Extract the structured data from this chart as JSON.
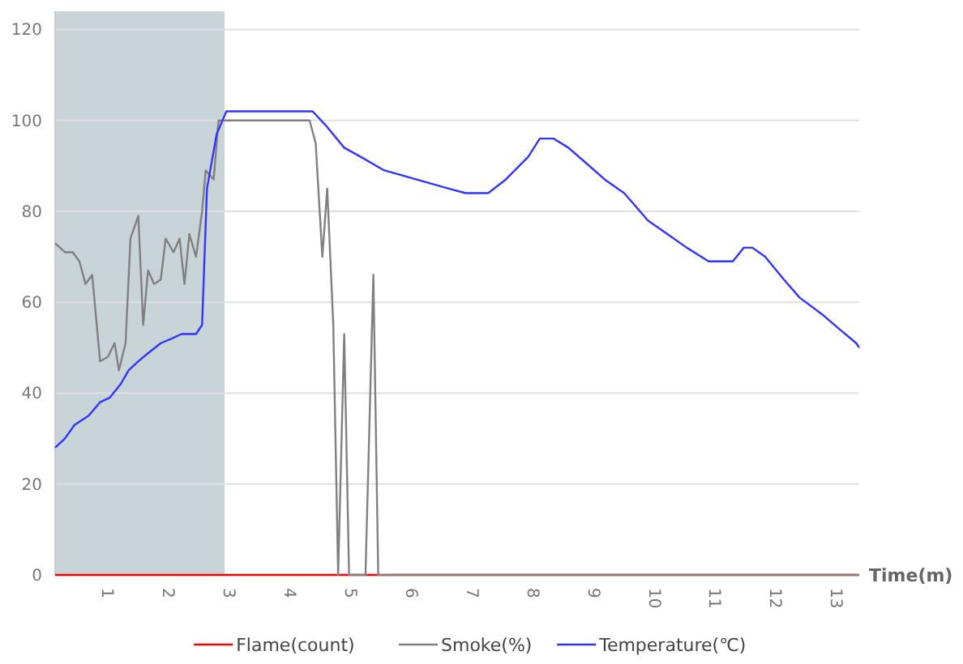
{
  "chart_data": {
    "type": "line",
    "xlabel": "Time(m)",
    "xlim": [
      0.13,
      13.37
    ],
    "xticks": [
      1,
      2,
      3,
      4,
      5,
      6,
      7,
      8,
      9,
      10,
      11,
      12,
      13
    ],
    "ylim": [
      0,
      124
    ],
    "yticks": [
      0,
      20,
      40,
      60,
      80,
      100,
      120
    ],
    "grid": "y",
    "legend": "bottom",
    "marker": "none",
    "line_style": "solid",
    "bands": [
      {
        "axis": "x",
        "from": 0.13,
        "to": 2.92,
        "color": "#c8d4d8"
      }
    ],
    "series": [
      {
        "name": "Flame(count)",
        "color": "#ff0000",
        "x": [
          0.13,
          13.37
        ],
        "values": [
          0,
          0
        ]
      },
      {
        "name": "Smoke(%)",
        "color": "#808080",
        "x": [
          0.13,
          0.29,
          0.42,
          0.53,
          0.63,
          0.74,
          0.87,
          1.0,
          1.11,
          1.18,
          1.29,
          1.37,
          1.5,
          1.58,
          1.66,
          1.76,
          1.87,
          1.95,
          2.08,
          2.18,
          2.26,
          2.34,
          2.45,
          2.55,
          2.61,
          2.74,
          2.82,
          4.32,
          4.42,
          4.53,
          4.61,
          4.71,
          4.79,
          4.89,
          4.97,
          5.24,
          5.37,
          5.45,
          13.37
        ],
        "values": [
          73,
          71,
          71,
          69,
          64,
          66,
          47,
          48,
          51,
          45,
          51,
          74,
          79,
          55,
          67,
          64,
          65,
          74,
          71,
          74,
          64,
          75,
          70,
          80,
          89,
          87,
          100,
          100,
          95,
          70,
          85,
          55,
          0,
          53,
          0,
          0,
          66,
          0,
          0
        ]
      },
      {
        "name": "Temperature(℃)",
        "color": "#3333ff",
        "x": [
          0.13,
          0.29,
          0.45,
          0.68,
          0.87,
          1.03,
          1.21,
          1.34,
          1.5,
          1.68,
          1.87,
          2.05,
          2.21,
          2.45,
          2.55,
          2.63,
          2.79,
          2.95,
          4.37,
          4.58,
          4.89,
          5.16,
          5.55,
          6.08,
          6.61,
          6.89,
          7.26,
          7.55,
          7.92,
          8.11,
          8.34,
          8.58,
          8.84,
          9.18,
          9.5,
          9.89,
          10.21,
          10.53,
          10.89,
          11.29,
          11.47,
          11.61,
          11.82,
          12.13,
          12.39,
          12.79,
          13.05,
          13.32,
          13.37
        ],
        "values": [
          28,
          30,
          33,
          35,
          38,
          39,
          42,
          45,
          47,
          49,
          51,
          52,
          53,
          53,
          55,
          85,
          97,
          102,
          102,
          99,
          94,
          92,
          89,
          87,
          85,
          84,
          84,
          87,
          92,
          96,
          96,
          94,
          91,
          87,
          84,
          78,
          75,
          72,
          69,
          69,
          72,
          72,
          70,
          65,
          61,
          57,
          54,
          51,
          50
        ]
      }
    ]
  }
}
